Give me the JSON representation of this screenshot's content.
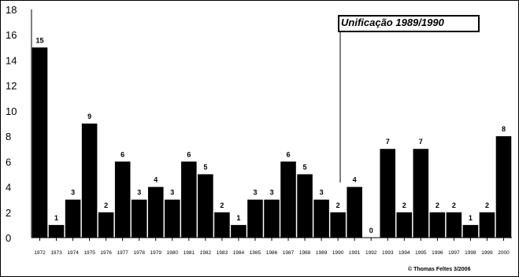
{
  "chart_data": {
    "type": "bar",
    "categories": [
      "1972",
      "1973",
      "1974",
      "1975",
      "1976",
      "1977",
      "1978",
      "1979",
      "1980",
      "1981",
      "1982",
      "1983",
      "1984",
      "1985",
      "1986",
      "1987",
      "1988",
      "1989",
      "1990",
      "1991",
      "1992",
      "1993",
      "1994",
      "1995",
      "1996",
      "1997",
      "1998",
      "1999",
      "2000"
    ],
    "values": [
      15,
      1,
      3,
      9,
      2,
      6,
      3,
      4,
      3,
      6,
      5,
      2,
      1,
      3,
      3,
      6,
      5,
      3,
      2,
      4,
      0,
      7,
      2,
      7,
      2,
      2,
      1,
      2,
      8
    ],
    "title": "",
    "xlabel": "",
    "ylabel": "",
    "ylim": [
      0,
      18
    ],
    "yticks": [
      0,
      2,
      4,
      6,
      8,
      10,
      12,
      14,
      16,
      18
    ],
    "grid": false,
    "bar_color": "#000000",
    "annotation": {
      "text": "Unificação 1989/1990"
    },
    "credit": "© Thomas Feltes 3/2006"
  }
}
